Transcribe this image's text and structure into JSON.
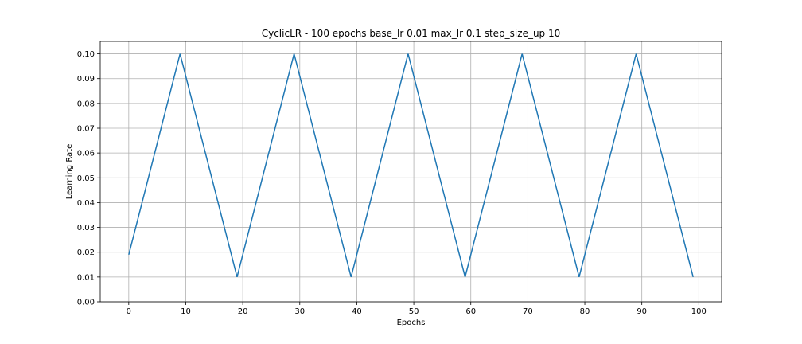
{
  "chart_data": {
    "type": "line",
    "title": "CyclicLR - 100 epochs base_lr 0.01 max_lr 0.1 step_size_up 10",
    "xlabel": "Epochs",
    "ylabel": "Learning Rate",
    "xlim": [
      -5,
      104
    ],
    "ylim": [
      0.0,
      0.105
    ],
    "xticks": [
      0,
      10,
      20,
      30,
      40,
      50,
      60,
      70,
      80,
      90,
      100
    ],
    "xtick_labels": [
      "0",
      "10",
      "20",
      "30",
      "40",
      "50",
      "60",
      "70",
      "80",
      "90",
      "100"
    ],
    "yticks": [
      0.0,
      0.01,
      0.02,
      0.03,
      0.04,
      0.05,
      0.06,
      0.07,
      0.08,
      0.09,
      0.1
    ],
    "ytick_labels": [
      "0.00",
      "0.01",
      "0.02",
      "0.03",
      "0.04",
      "0.05",
      "0.06",
      "0.07",
      "0.08",
      "0.09",
      "0.10"
    ],
    "grid": true,
    "series": [
      {
        "color": "#1f77b4",
        "x": [
          0,
          9,
          19,
          29,
          39,
          49,
          59,
          69,
          79,
          89,
          99
        ],
        "y": [
          0.019,
          0.1,
          0.01,
          0.1,
          0.01,
          0.1,
          0.01,
          0.1,
          0.01,
          0.1,
          0.01
        ]
      }
    ]
  }
}
